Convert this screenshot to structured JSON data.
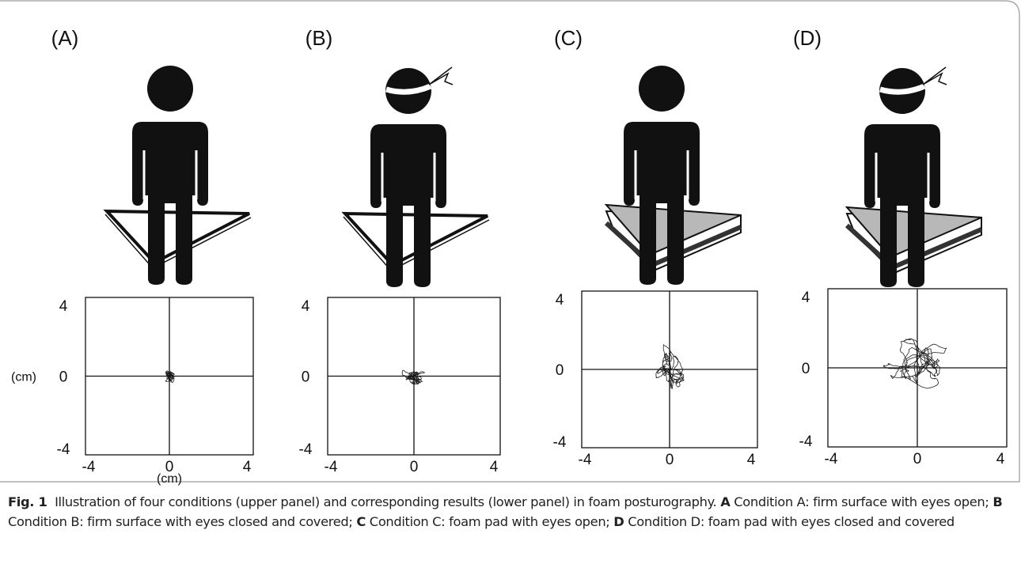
{
  "figure": {
    "panels": [
      {
        "label": "(A)",
        "y_ticks": [
          "4",
          "0",
          "-4"
        ],
        "x_ticks": [
          "-4",
          "0",
          "4"
        ],
        "y_unit": "(cm)",
        "x_unit": "(cm)"
      },
      {
        "label": "(B)",
        "y_ticks": [
          "4",
          "0",
          "-4"
        ],
        "x_ticks": [
          "-4",
          "0",
          "4"
        ]
      },
      {
        "label": "(C)",
        "y_ticks": [
          "4",
          "0",
          "-4"
        ],
        "x_ticks": [
          "-4",
          "0",
          "4"
        ]
      },
      {
        "label": "(D)",
        "y_ticks": [
          "4",
          "0",
          "-4"
        ],
        "x_ticks": [
          "-4",
          "0",
          "4"
        ]
      }
    ],
    "caption": {
      "label": "Fig. 1",
      "text": "Illustration of four conditions (upper panel) and corresponding results (lower panel) in foam posturography.",
      "items": [
        {
          "key": "A",
          "text": "Condition A: firm surface with eyes open;"
        },
        {
          "key": "B",
          "text": "Condition B: firm surface with eyes closed and covered;"
        },
        {
          "key": "C",
          "text": "Condition C: foam pad with eyes open;"
        },
        {
          "key": "D",
          "text": "Condition D: foam pad with eyes closed and covered"
        }
      ]
    }
  }
}
